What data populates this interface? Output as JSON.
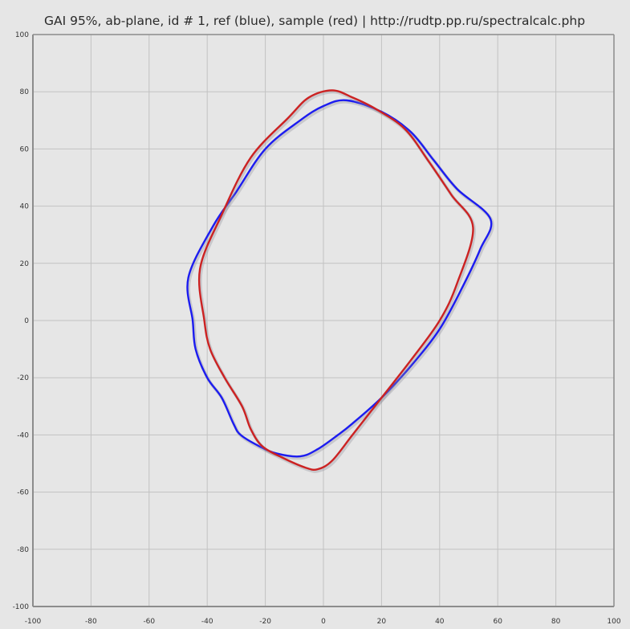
{
  "chart_data": {
    "type": "line",
    "title": "GAI 95%, ab-plane, id # 1, ref (blue), sample (red)  |  http://rudtp.pp.ru/spectralcalc.php",
    "xlabel": "",
    "ylabel": "",
    "xlim": [
      -100,
      100
    ],
    "ylim": [
      -100,
      100
    ],
    "x_ticks": [
      -100,
      -80,
      -60,
      -40,
      -20,
      0,
      20,
      40,
      60,
      80,
      100
    ],
    "y_ticks": [
      -100,
      -80,
      -60,
      -40,
      -20,
      0,
      20,
      40,
      60,
      80,
      100
    ],
    "grid": true,
    "colors": {
      "background": "#e6e6e6",
      "grid": "#c2c2c2",
      "axis": "#8c8c8c",
      "ref": "#1c1cf0",
      "sample": "#cc2222"
    },
    "series": [
      {
        "key": "ref",
        "color": "#1c1cf0",
        "points": [
          [
            -46.5,
            15
          ],
          [
            -45,
            0
          ],
          [
            -44,
            -10
          ],
          [
            -40,
            -20
          ],
          [
            -35,
            -27
          ],
          [
            -31,
            -36
          ],
          [
            -28.5,
            -40
          ],
          [
            -22,
            -44
          ],
          [
            -16,
            -46.5
          ],
          [
            -8,
            -47.5
          ],
          [
            -2,
            -45
          ],
          [
            5,
            -40
          ],
          [
            10,
            -36
          ],
          [
            20,
            -27
          ],
          [
            30,
            -16
          ],
          [
            40,
            -3
          ],
          [
            48,
            12
          ],
          [
            54,
            25
          ],
          [
            57.5,
            35.5
          ],
          [
            46,
            46
          ],
          [
            38,
            56
          ],
          [
            30,
            66
          ],
          [
            20,
            73
          ],
          [
            8,
            77
          ],
          [
            0,
            75
          ],
          [
            -8,
            70
          ],
          [
            -20,
            60
          ],
          [
            -30,
            45
          ],
          [
            -38,
            33
          ],
          [
            -46.5,
            15
          ]
        ]
      },
      {
        "key": "sample",
        "color": "#cc2222",
        "points": [
          [
            -42.5,
            18
          ],
          [
            -41,
            0
          ],
          [
            -39,
            -10
          ],
          [
            -34,
            -20
          ],
          [
            -28,
            -30
          ],
          [
            -25,
            -38
          ],
          [
            -21,
            -44
          ],
          [
            -14,
            -48
          ],
          [
            -6,
            -51.5
          ],
          [
            -2,
            -52
          ],
          [
            3,
            -49
          ],
          [
            10,
            -40
          ],
          [
            20,
            -27
          ],
          [
            30,
            -14
          ],
          [
            40,
            0
          ],
          [
            46,
            13
          ],
          [
            51.5,
            32.5
          ],
          [
            44,
            44
          ],
          [
            36,
            56
          ],
          [
            28,
            67
          ],
          [
            18,
            74
          ],
          [
            10,
            78
          ],
          [
            3,
            80.5
          ],
          [
            -5,
            78
          ],
          [
            -12,
            71
          ],
          [
            -25,
            57
          ],
          [
            -35,
            37
          ],
          [
            -42.5,
            18
          ]
        ]
      }
    ]
  }
}
